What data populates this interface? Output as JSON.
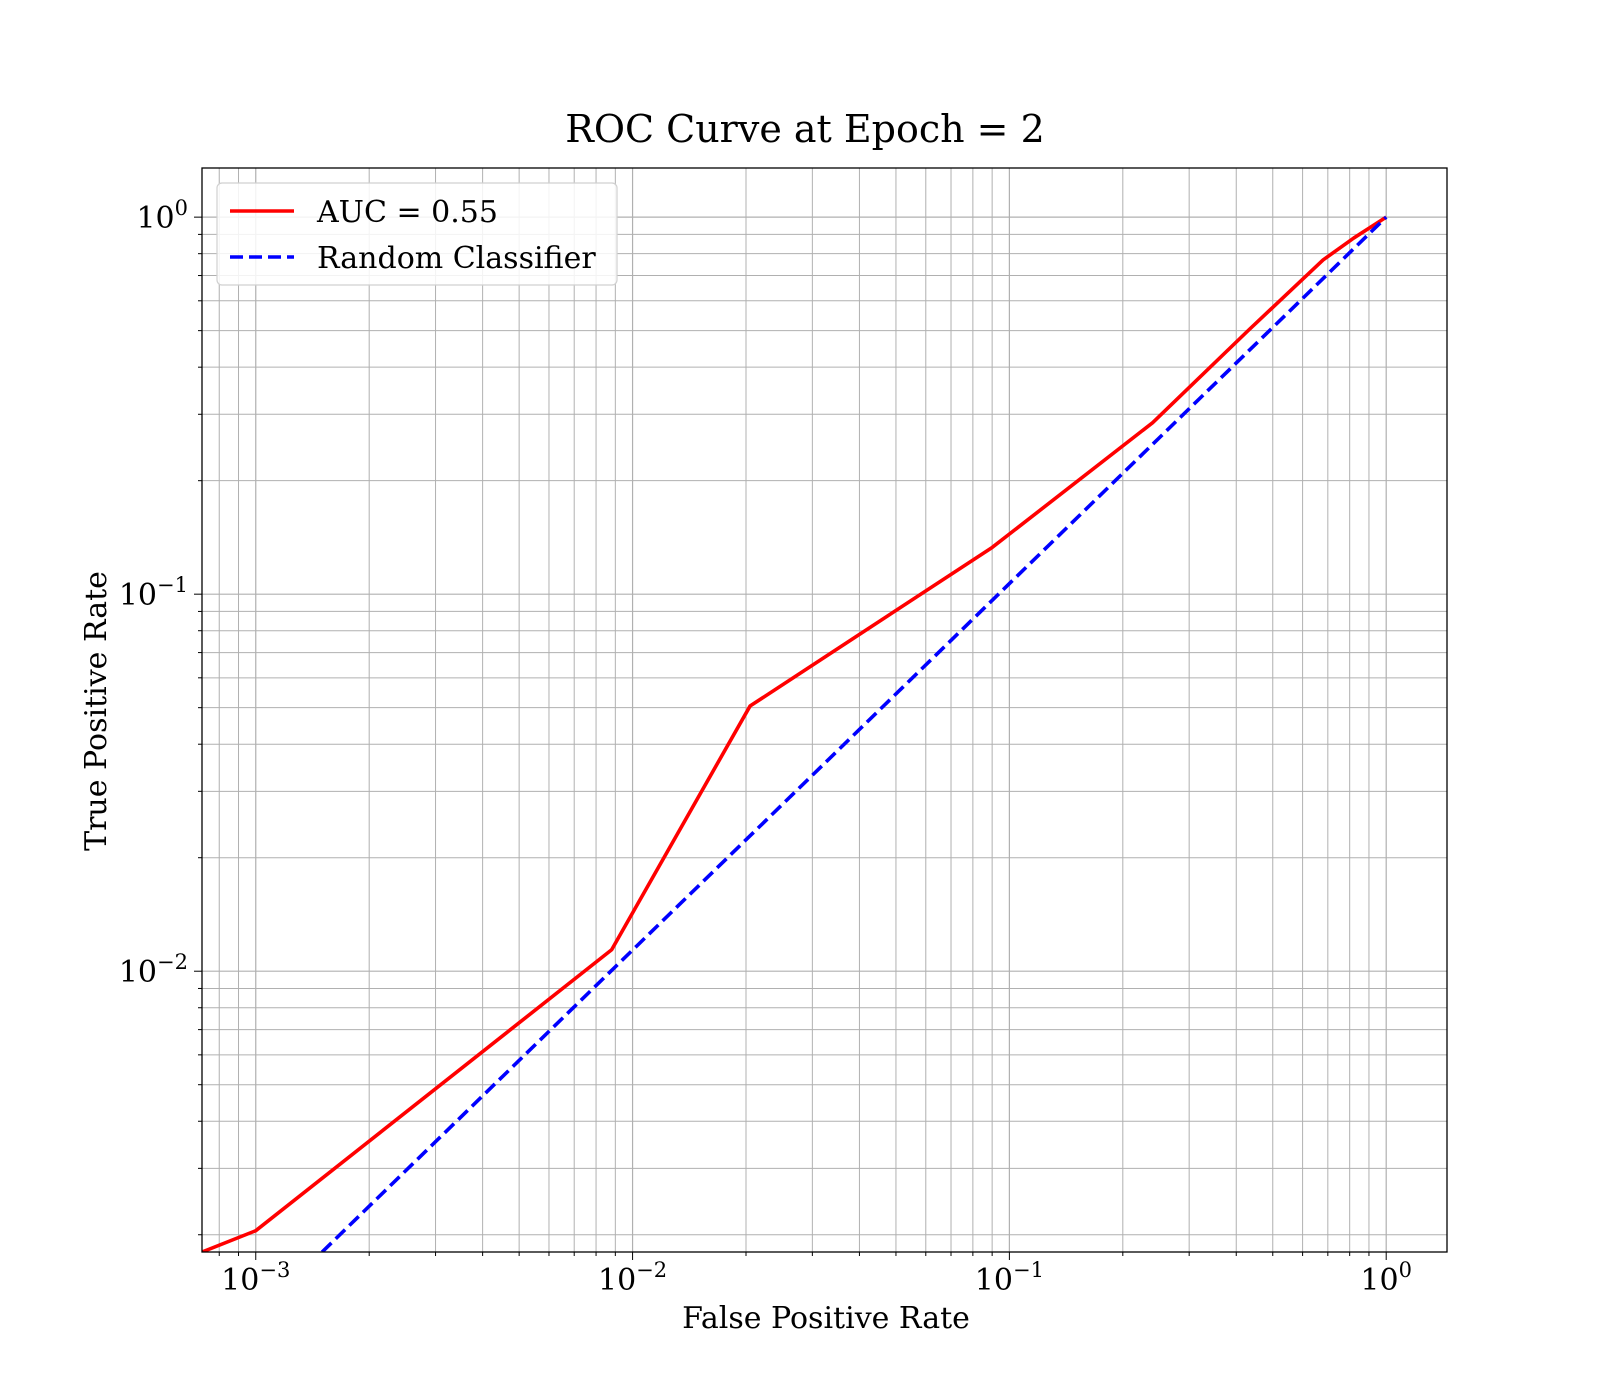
{
  "chart_data": {
    "type": "line",
    "title": "ROC Curve at Epoch = 2",
    "xlabel": "False Positive Rate",
    "ylabel": "True Positive Rate",
    "xscale": "log",
    "yscale": "log",
    "xlim": [
      0.00072,
      1.45
    ],
    "ylim": [
      0.0018,
      1.35
    ],
    "grid": true,
    "grid_minor": true,
    "legend_position": "upper-left",
    "x_ticks": [
      {
        "value": 0.001,
        "base": "10",
        "exp": "−3"
      },
      {
        "value": 0.01,
        "base": "10",
        "exp": "−2"
      },
      {
        "value": 0.1,
        "base": "10",
        "exp": "−1"
      },
      {
        "value": 1,
        "base": "10",
        "exp": "0"
      }
    ],
    "y_ticks": [
      {
        "value": 0.01,
        "base": "10",
        "exp": "−2"
      },
      {
        "value": 0.1,
        "base": "10",
        "exp": "−1"
      },
      {
        "value": 1,
        "base": "10",
        "exp": "0"
      }
    ],
    "series": [
      {
        "name": "AUC = 0.55",
        "color": "#ff0000",
        "style": "solid",
        "x": [
          0.00072,
          0.001,
          0.0088,
          0.0205,
          0.09,
          0.24,
          0.43,
          0.68,
          0.82,
          1.0
        ],
        "y": [
          0.0018,
          0.00205,
          0.0114,
          0.0505,
          0.133,
          0.285,
          0.5,
          0.77,
          0.88,
          1.0
        ]
      },
      {
        "name": "Random Classifier",
        "color": "#0000ff",
        "style": "dashed",
        "x": [
          0.0015,
          1.0
        ],
        "y": [
          0.0018,
          1.0
        ]
      }
    ]
  }
}
